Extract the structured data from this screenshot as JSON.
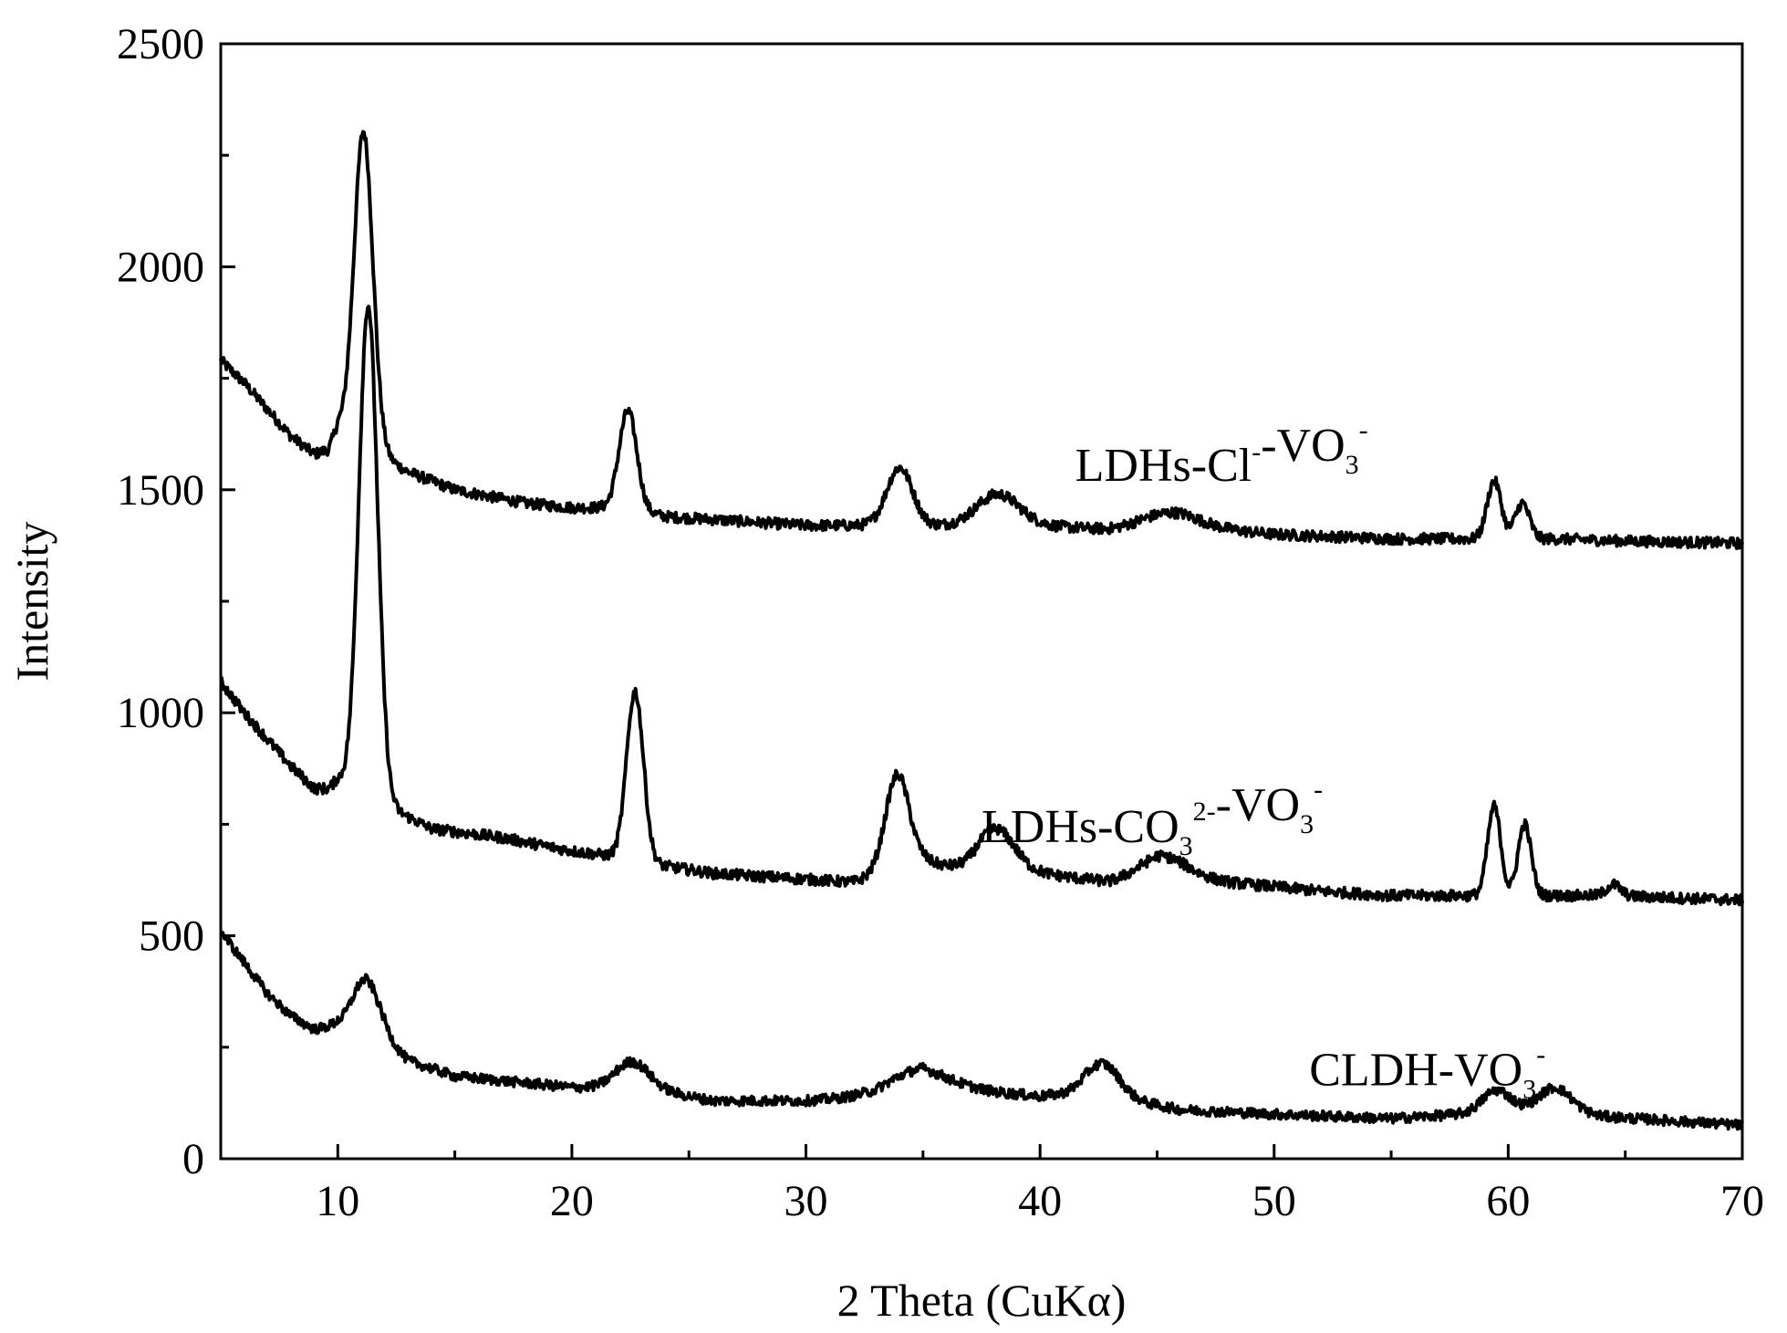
{
  "chart_data": {
    "type": "line",
    "xlabel": "2 Theta (CuKα)",
    "ylabel": "Intensity",
    "xlim": [
      5,
      70
    ],
    "ylim": [
      0,
      2500
    ],
    "x_ticks": [
      10,
      20,
      30,
      40,
      50,
      60,
      70
    ],
    "y_ticks": [
      0,
      500,
      1000,
      1500,
      2000,
      2500
    ],
    "x_tick_labels": [
      "10",
      "20",
      "30",
      "40",
      "50",
      "60",
      "70"
    ],
    "y_tick_labels": [
      "0",
      "500",
      "1000",
      "1500",
      "2000",
      "2500"
    ],
    "x_minor_step": 5,
    "y_minor_step": 250,
    "grid": false,
    "line_color": "#000000",
    "series": [
      {
        "name": "LDHs-Cl⁻-VO₃⁻",
        "label_parts": {
          "a": "LDHs-Cl",
          "a_sup": "-",
          "b": "-VO",
          "b_sub": "3",
          "b_sup": "-"
        },
        "label_at": [
          41.5,
          1520
        ],
        "baseline": [
          [
            5,
            1790
          ],
          [
            6,
            1740
          ],
          [
            7,
            1680
          ],
          [
            8,
            1620
          ],
          [
            9,
            1580
          ],
          [
            9.6,
            1590
          ],
          [
            10,
            1640
          ],
          [
            13,
            1540
          ],
          [
            15,
            1500
          ],
          [
            18,
            1470
          ],
          [
            20,
            1460
          ],
          [
            22,
            1460
          ],
          [
            24,
            1440
          ],
          [
            27,
            1430
          ],
          [
            30,
            1420
          ],
          [
            33,
            1420
          ],
          [
            36,
            1420
          ],
          [
            40,
            1420
          ],
          [
            43,
            1410
          ],
          [
            46,
            1420
          ],
          [
            50,
            1400
          ],
          [
            55,
            1390
          ],
          [
            58,
            1390
          ],
          [
            62,
            1390
          ],
          [
            65,
            1385
          ],
          [
            70,
            1380
          ]
        ],
        "peaks": [
          {
            "x": 11.1,
            "h": 700,
            "w": 0.4
          },
          {
            "x": 22.4,
            "h": 220,
            "w": 0.38
          },
          {
            "x": 34.0,
            "h": 130,
            "w": 0.55
          },
          {
            "x": 38.2,
            "h": 70,
            "w": 0.9
          },
          {
            "x": 45.5,
            "h": 30,
            "w": 1.2
          },
          {
            "x": 59.4,
            "h": 130,
            "w": 0.3
          },
          {
            "x": 60.6,
            "h": 80,
            "w": 0.3
          }
        ],
        "noise": 12
      },
      {
        "name": "LDHs-CO₃²⁻-VO₃⁻",
        "label_parts": {
          "a": "LDHs-CO",
          "a_sub": "3",
          "a_sup": "2-",
          "b": "-VO",
          "b_sub": "3",
          "b_sup": "-"
        },
        "label_at": [
          37.5,
          710
        ],
        "baseline": [
          [
            5,
            1070
          ],
          [
            6,
            1000
          ],
          [
            7,
            940
          ],
          [
            8,
            880
          ],
          [
            9,
            830
          ],
          [
            9.6,
            830
          ],
          [
            10,
            850
          ],
          [
            12.5,
            780
          ],
          [
            14,
            740
          ],
          [
            17,
            720
          ],
          [
            20,
            690
          ],
          [
            21.5,
            680
          ],
          [
            23.5,
            660
          ],
          [
            26,
            640
          ],
          [
            29,
            630
          ],
          [
            32,
            620
          ],
          [
            35,
            670
          ],
          [
            37,
            640
          ],
          [
            40,
            640
          ],
          [
            43,
            620
          ],
          [
            45,
            640
          ],
          [
            48,
            620
          ],
          [
            52,
            600
          ],
          [
            55,
            590
          ],
          [
            58,
            590
          ],
          [
            62,
            590
          ],
          [
            64.3,
            590
          ],
          [
            70,
            580
          ]
        ],
        "peaks": [
          {
            "x": 11.3,
            "h": 1100,
            "w": 0.4
          },
          {
            "x": 22.7,
            "h": 380,
            "w": 0.36
          },
          {
            "x": 33.9,
            "h": 210,
            "w": 0.5
          },
          {
            "x": 38.1,
            "h": 100,
            "w": 0.8
          },
          {
            "x": 45.3,
            "h": 40,
            "w": 1.0
          },
          {
            "x": 59.4,
            "h": 200,
            "w": 0.28
          },
          {
            "x": 60.7,
            "h": 160,
            "w": 0.28
          },
          {
            "x": 64.5,
            "h": 25,
            "w": 0.3
          }
        ],
        "noise": 12
      },
      {
        "name": "CLDH-VO₃⁻",
        "label_parts": {
          "a": "CLDH-VO",
          "a_sub": "3",
          "a_sup": "-"
        },
        "label_at": [
          51.5,
          165
        ],
        "baseline": [
          [
            5,
            510
          ],
          [
            6,
            440
          ],
          [
            7,
            370
          ],
          [
            8,
            320
          ],
          [
            9,
            290
          ],
          [
            10,
            300
          ],
          [
            12,
            270
          ],
          [
            13,
            220
          ],
          [
            15,
            185
          ],
          [
            18,
            170
          ],
          [
            20,
            160
          ],
          [
            22,
            160
          ],
          [
            24,
            150
          ],
          [
            26,
            130
          ],
          [
            30,
            130
          ],
          [
            33,
            140
          ],
          [
            35,
            175
          ],
          [
            38,
            150
          ],
          [
            40,
            140
          ],
          [
            42,
            150
          ],
          [
            44,
            130
          ],
          [
            46,
            110
          ],
          [
            50,
            100
          ],
          [
            55,
            90
          ],
          [
            58,
            100
          ],
          [
            62,
            110
          ],
          [
            64,
            95
          ],
          [
            70,
            75
          ]
        ],
        "peaks": [
          {
            "x": 11.2,
            "h": 120,
            "w": 0.55
          },
          {
            "x": 22.6,
            "h": 60,
            "w": 0.7
          },
          {
            "x": 34.5,
            "h": 30,
            "w": 1.3
          },
          {
            "x": 42.7,
            "h": 70,
            "w": 0.7
          },
          {
            "x": 59.5,
            "h": 50,
            "w": 0.6
          },
          {
            "x": 62.0,
            "h": 50,
            "w": 0.7
          }
        ],
        "noise": 11
      }
    ]
  }
}
